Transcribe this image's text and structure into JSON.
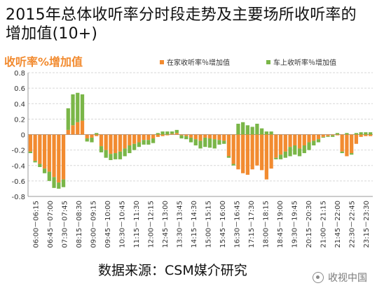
{
  "header": {
    "title": "2015年总体收听率分时段走势及主要场所收听率的增加值(10+)"
  },
  "chart_data": {
    "type": "bar",
    "title": "2015年总体收听率分时段走势及主要场所收听率的增加值(10+)",
    "panel_title": "收听率%增加值",
    "ylim": [
      -0.8,
      0.8
    ],
    "yticks": [
      0.8,
      0.6,
      0.4,
      0.2,
      0,
      -0.2,
      -0.4,
      -0.6,
      -0.8
    ],
    "ytick_labels": [
      "0.8",
      "0.6",
      "0.4",
      "0.2",
      "0",
      "-0.2",
      "-0.4",
      "-0.6",
      "-0.8"
    ],
    "grid": true,
    "legend": "top-right",
    "x_tick_labels": [
      "06:00－06:15",
      "06:45－07:00",
      "07:30－07:45",
      "08:15－08:30",
      "09:00－09:15",
      "09:45－10:00",
      "10:30－10:45",
      "11:15－11:30",
      "12:00－12:15",
      "12:45－13:00",
      "13:30－13:45",
      "14:15－14:30",
      "15:00－15:15",
      "15:45－16:00",
      "16:30－16:45",
      "17:15－17:30",
      "18:00－18:15",
      "18:45－19:00",
      "19:30－19:45",
      "20:15－20:30",
      "21:00－21:15",
      "21:45－22:00",
      "22:30－22:45",
      "23:15－23:30"
    ],
    "series": [
      {
        "name": "在家收听率％增加值",
        "color": "#f28b30",
        "values": [
          -0.22,
          -0.34,
          -0.38,
          -0.44,
          -0.48,
          -0.55,
          -0.62,
          -0.58,
          0.06,
          0.12,
          0.16,
          0.18,
          -0.05,
          -0.04,
          -0.02,
          -0.15,
          -0.2,
          -0.25,
          -0.24,
          -0.22,
          -0.18,
          -0.14,
          -0.12,
          -0.1,
          -0.07,
          -0.07,
          -0.05,
          -0.03,
          -0.02,
          -0.01,
          0.01,
          0.02,
          -0.01,
          -0.02,
          -0.04,
          -0.06,
          -0.08,
          -0.04,
          -0.05,
          -0.06,
          -0.07,
          -0.08,
          -0.28,
          -0.38,
          -0.45,
          -0.5,
          -0.52,
          -0.45,
          -0.4,
          -0.46,
          -0.58,
          -0.44,
          -0.3,
          -0.26,
          -0.22,
          -0.16,
          -0.14,
          -0.18,
          -0.14,
          -0.1,
          -0.08,
          -0.06,
          -0.03,
          -0.02,
          -0.01,
          -0.01,
          -0.22,
          -0.28,
          -0.24,
          -0.12,
          -0.03,
          -0.02,
          -0.02
        ]
      },
      {
        "name": "车上收听率％增加值",
        "color": "#7ab648",
        "values": [
          -0.02,
          -0.02,
          -0.04,
          -0.06,
          -0.12,
          -0.14,
          -0.08,
          -0.1,
          0.28,
          0.4,
          0.38,
          0.34,
          -0.04,
          -0.06,
          0.02,
          -0.08,
          -0.1,
          -0.08,
          -0.08,
          -0.1,
          -0.1,
          -0.1,
          -0.08,
          -0.06,
          -0.06,
          -0.06,
          -0.06,
          0.02,
          0.04,
          0.04,
          0.03,
          0.04,
          -0.04,
          -0.04,
          -0.06,
          -0.08,
          -0.1,
          -0.12,
          -0.12,
          -0.12,
          -0.06,
          -0.04,
          -0.02,
          -0.02,
          0.14,
          0.16,
          0.12,
          0.1,
          0.14,
          0.08,
          0.04,
          0.04,
          -0.02,
          -0.06,
          -0.08,
          -0.12,
          -0.12,
          -0.1,
          -0.1,
          -0.1,
          -0.06,
          -0.04,
          -0.01,
          -0.01,
          -0.02,
          0.02,
          -0.02,
          0.02,
          -0.02,
          0.02,
          0.03,
          0.03,
          0.03
        ]
      }
    ]
  },
  "source": {
    "text": "数据来源：CSM媒介研究"
  },
  "watermark": {
    "text": "收视中国",
    "icon": "wechat-official-account-icon"
  }
}
